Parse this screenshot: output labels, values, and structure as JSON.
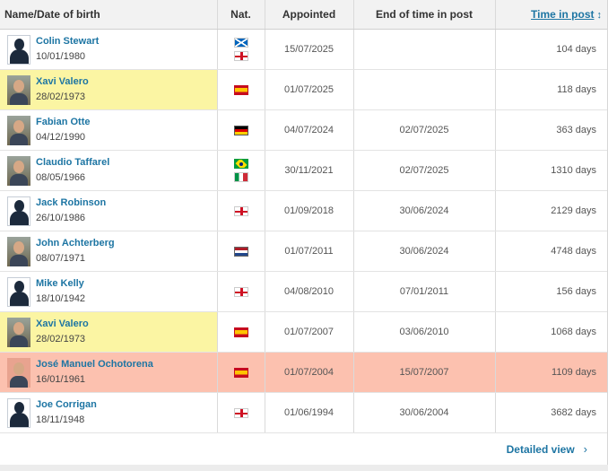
{
  "header": {
    "name_dob": "Name/Date of birth",
    "nat": "Nat.",
    "appointed": "Appointed",
    "end": "End of time in post",
    "time": "Time in post",
    "sort_icon": "↕"
  },
  "rows": [
    {
      "name": "Colin Stewart",
      "dob": "10/01/1980",
      "photo": "silhouette",
      "flags": [
        "scotland",
        "england"
      ],
      "appointed": "15/07/2025",
      "end": "",
      "time": "104 days",
      "highlight": "none"
    },
    {
      "name": "Xavi Valero",
      "dob": "28/02/1973",
      "photo": "photo",
      "flags": [
        "spain"
      ],
      "appointed": "01/07/2025",
      "end": "",
      "time": "118 days",
      "highlight": "yellow"
    },
    {
      "name": "Fabian Otte",
      "dob": "04/12/1990",
      "photo": "photo",
      "flags": [
        "germany"
      ],
      "appointed": "04/07/2024",
      "end": "02/07/2025",
      "time": "363 days",
      "highlight": "none"
    },
    {
      "name": "Claudio Taffarel",
      "dob": "08/05/1966",
      "photo": "photo",
      "flags": [
        "brazil",
        "italy"
      ],
      "appointed": "30/11/2021",
      "end": "02/07/2025",
      "time": "1310 days",
      "highlight": "none"
    },
    {
      "name": "Jack Robinson",
      "dob": "26/10/1986",
      "photo": "silhouette",
      "flags": [
        "england"
      ],
      "appointed": "01/09/2018",
      "end": "30/06/2024",
      "time": "2129 days",
      "highlight": "none"
    },
    {
      "name": "John Achterberg",
      "dob": "08/07/1971",
      "photo": "photo",
      "flags": [
        "netherlands"
      ],
      "appointed": "01/07/2011",
      "end": "30/06/2024",
      "time": "4748 days",
      "highlight": "none"
    },
    {
      "name": "Mike Kelly",
      "dob": "18/10/1942",
      "photo": "silhouette",
      "flags": [
        "england"
      ],
      "appointed": "04/08/2010",
      "end": "07/01/2011",
      "time": "156 days",
      "highlight": "none"
    },
    {
      "name": "Xavi Valero",
      "dob": "28/02/1973",
      "photo": "photo",
      "flags": [
        "spain"
      ],
      "appointed": "01/07/2007",
      "end": "03/06/2010",
      "time": "1068 days",
      "highlight": "yellow"
    },
    {
      "name": "José Manuel Ochotorena",
      "dob": "16/01/1961",
      "photo": "photo-red",
      "flags": [
        "spain"
      ],
      "appointed": "01/07/2004",
      "end": "15/07/2007",
      "time": "1109 days",
      "highlight": "red"
    },
    {
      "name": "Joe Corrigan",
      "dob": "18/11/1948",
      "photo": "silhouette",
      "flags": [
        "england"
      ],
      "appointed": "01/06/1994",
      "end": "30/06/2004",
      "time": "3682 days",
      "highlight": "none"
    }
  ],
  "footer": {
    "detail_label": "Detailed view",
    "chevron": "›"
  }
}
